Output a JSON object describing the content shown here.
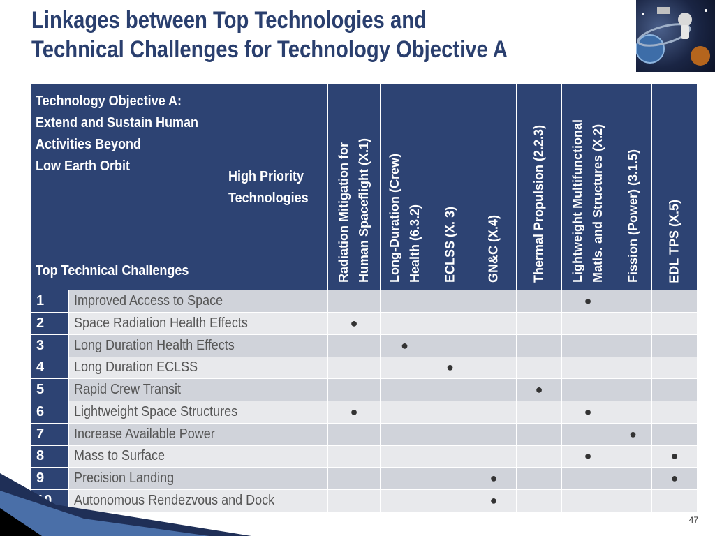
{
  "title_lines": [
    "Linkages between Top Technologies and",
    "Technical Challenges for Technology Objective A"
  ],
  "header": {
    "objective_lines": [
      "Technology Objective A:",
      "Extend and Sustain Human",
      "Activities Beyond",
      "Low Earth Orbit"
    ],
    "hpt_lines": [
      "High Priority",
      "Technologies"
    ],
    "ttc_label": "Top Technical Challenges"
  },
  "technologies": [
    {
      "label": "Radiation Mitigation for\nHuman Spaceflight (X.1)"
    },
    {
      "label": "Long-Duration (Crew)\nHealth (6.3.2)"
    },
    {
      "label": "ECLSS (X. 3)"
    },
    {
      "label": "GN&C (X.4)"
    },
    {
      "label": "Thermal Propulsion (2.2.3)"
    },
    {
      "label": "Lightweight Multifunctional\nMatls. and Structures (X.2)"
    },
    {
      "label": "Fission (Power) (3.1.5)"
    },
    {
      "label": "EDL TPS (X.5)"
    }
  ],
  "mark_symbol": "●",
  "challenges": [
    {
      "num": "1",
      "label": "Improved Access to Space",
      "marks": [
        5
      ]
    },
    {
      "num": "2",
      "label": "Space Radiation Health Effects",
      "marks": [
        0
      ]
    },
    {
      "num": "3",
      "label": "Long Duration Health Effects",
      "marks": [
        1
      ]
    },
    {
      "num": "4",
      "label": "Long Duration ECLSS",
      "marks": [
        2
      ]
    },
    {
      "num": "5",
      "label": "Rapid Crew Transit",
      "marks": [
        4
      ]
    },
    {
      "num": "6",
      "label": "Lightweight Space Structures",
      "marks": [
        0,
        5
      ]
    },
    {
      "num": "7",
      "label": "Increase Available Power",
      "marks": [
        6
      ]
    },
    {
      "num": "8",
      "label": "Mass to Surface",
      "marks": [
        5,
        7
      ]
    },
    {
      "num": "9",
      "label": "Precision Landing",
      "marks": [
        3,
        7
      ]
    },
    {
      "num": "10",
      "label": "Autonomous Rendezvous and Dock",
      "marks": [
        3
      ]
    }
  ],
  "page_number": "47",
  "colors": {
    "header_blue": "#2d4373",
    "title_blue": "#2a3f6e",
    "row_dark": "#d0d3da",
    "row_light": "#e8e9ec"
  }
}
